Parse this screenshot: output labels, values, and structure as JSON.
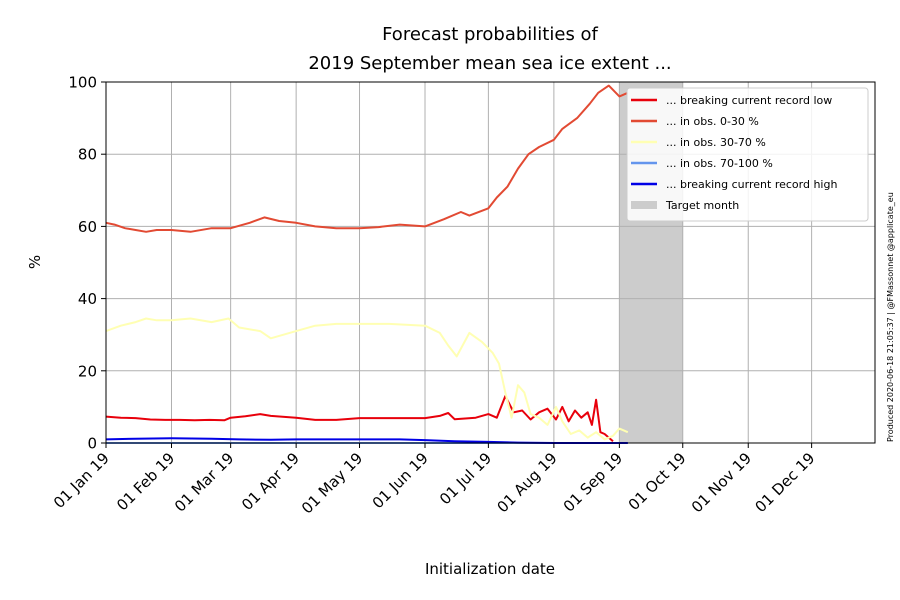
{
  "chart_data": {
    "type": "line",
    "title": [
      "Forecast probabilities of",
      "2019 September mean sea ice extent ..."
    ],
    "xlabel": "Initialization date",
    "ylabel": "%",
    "xlim": [
      "2019-01-01",
      "2019-12-31"
    ],
    "ylim": [
      0,
      100
    ],
    "yticks": [
      0,
      20,
      40,
      60,
      80,
      100
    ],
    "xticks": [
      {
        "date": "2019-01-01",
        "label": "01 Jan 19"
      },
      {
        "date": "2019-02-01",
        "label": "01 Feb 19"
      },
      {
        "date": "2019-03-01",
        "label": "01 Mar 19"
      },
      {
        "date": "2019-04-01",
        "label": "01 Apr 19"
      },
      {
        "date": "2019-05-01",
        "label": "01 May 19"
      },
      {
        "date": "2019-06-01",
        "label": "01 Jun 19"
      },
      {
        "date": "2019-07-01",
        "label": "01 Jul 19"
      },
      {
        "date": "2019-08-01",
        "label": "01 Aug 19"
      },
      {
        "date": "2019-09-01",
        "label": "01 Sep 19"
      },
      {
        "date": "2019-10-01",
        "label": "01 Oct 19"
      },
      {
        "date": "2019-11-01",
        "label": "01 Nov 19"
      },
      {
        "date": "2019-12-01",
        "label": "01 Dec 19"
      }
    ],
    "grid": true,
    "legend_position": "top-right",
    "target_month": {
      "start": "2019-09-01",
      "end": "2019-10-01",
      "label": "Target month",
      "color": "#cccccc"
    },
    "credit": "Produced 2020-06-18 21:05:37 | @FMassonnet @applicate_eu",
    "series": [
      {
        "name": "... breaking current record low",
        "color": "#e8000b",
        "points": [
          [
            "2019-01-01",
            7.3
          ],
          [
            "2019-01-08",
            7.0
          ],
          [
            "2019-01-15",
            6.9
          ],
          [
            "2019-01-22",
            6.5
          ],
          [
            "2019-01-29",
            6.4
          ],
          [
            "2019-02-05",
            6.4
          ],
          [
            "2019-02-12",
            6.3
          ],
          [
            "2019-02-19",
            6.4
          ],
          [
            "2019-02-26",
            6.3
          ],
          [
            "2019-03-01",
            7.0
          ],
          [
            "2019-03-08",
            7.4
          ],
          [
            "2019-03-15",
            8.0
          ],
          [
            "2019-03-20",
            7.5
          ],
          [
            "2019-04-01",
            7.0
          ],
          [
            "2019-04-10",
            6.4
          ],
          [
            "2019-04-20",
            6.4
          ],
          [
            "2019-05-01",
            6.9
          ],
          [
            "2019-05-15",
            6.9
          ],
          [
            "2019-06-01",
            6.9
          ],
          [
            "2019-06-08",
            7.5
          ],
          [
            "2019-06-12",
            8.3
          ],
          [
            "2019-06-15",
            6.6
          ],
          [
            "2019-06-25",
            7.0
          ],
          [
            "2019-07-01",
            8.0
          ],
          [
            "2019-07-05",
            7.0
          ],
          [
            "2019-07-09",
            13.0
          ],
          [
            "2019-07-13",
            8.5
          ],
          [
            "2019-07-17",
            9.0
          ],
          [
            "2019-07-21",
            6.5
          ],
          [
            "2019-07-25",
            8.5
          ],
          [
            "2019-07-29",
            9.5
          ],
          [
            "2019-08-02",
            6.5
          ],
          [
            "2019-08-05",
            10.0
          ],
          [
            "2019-08-08",
            6.0
          ],
          [
            "2019-08-11",
            9.0
          ],
          [
            "2019-08-14",
            7.0
          ],
          [
            "2019-08-17",
            8.5
          ],
          [
            "2019-08-19",
            5.0
          ],
          [
            "2019-08-21",
            12.0
          ],
          [
            "2019-08-23",
            3.0
          ],
          [
            "2019-08-25",
            2.5
          ],
          [
            "2019-08-27",
            1.5
          ],
          [
            "2019-08-29",
            0.5
          ]
        ]
      },
      {
        "name": "... in obs. 0-30 %",
        "color": "#e24a33",
        "points": [
          [
            "2019-01-01",
            61.0
          ],
          [
            "2019-01-05",
            60.5
          ],
          [
            "2019-01-10",
            59.5
          ],
          [
            "2019-01-15",
            59.0
          ],
          [
            "2019-01-20",
            58.5
          ],
          [
            "2019-01-25",
            59.0
          ],
          [
            "2019-02-01",
            59.0
          ],
          [
            "2019-02-10",
            58.5
          ],
          [
            "2019-02-20",
            59.5
          ],
          [
            "2019-03-01",
            59.5
          ],
          [
            "2019-03-10",
            61.0
          ],
          [
            "2019-03-17",
            62.5
          ],
          [
            "2019-03-24",
            61.5
          ],
          [
            "2019-04-01",
            61.0
          ],
          [
            "2019-04-10",
            60.0
          ],
          [
            "2019-04-20",
            59.5
          ],
          [
            "2019-05-01",
            59.5
          ],
          [
            "2019-05-10",
            59.8
          ],
          [
            "2019-05-20",
            60.5
          ],
          [
            "2019-06-01",
            60.0
          ],
          [
            "2019-06-10",
            62.0
          ],
          [
            "2019-06-18",
            64.0
          ],
          [
            "2019-06-22",
            63.0
          ],
          [
            "2019-07-01",
            65.0
          ],
          [
            "2019-07-05",
            68.0
          ],
          [
            "2019-07-10",
            71.0
          ],
          [
            "2019-07-15",
            76.0
          ],
          [
            "2019-07-20",
            80.0
          ],
          [
            "2019-07-25",
            82.0
          ],
          [
            "2019-08-01",
            84.0
          ],
          [
            "2019-08-05",
            87.0
          ],
          [
            "2019-08-12",
            90.0
          ],
          [
            "2019-08-18",
            94.0
          ],
          [
            "2019-08-22",
            97.0
          ],
          [
            "2019-08-27",
            99.0
          ],
          [
            "2019-09-01",
            96.0
          ],
          [
            "2019-09-05",
            97.0
          ]
        ]
      },
      {
        "name": "... in obs. 30-70 %",
        "color": "#ffffb3",
        "points": [
          [
            "2019-01-01",
            31.0
          ],
          [
            "2019-01-08",
            32.5
          ],
          [
            "2019-01-15",
            33.5
          ],
          [
            "2019-01-20",
            34.5
          ],
          [
            "2019-01-25",
            34.0
          ],
          [
            "2019-02-01",
            34.0
          ],
          [
            "2019-02-10",
            34.5
          ],
          [
            "2019-02-20",
            33.5
          ],
          [
            "2019-02-28",
            34.5
          ],
          [
            "2019-03-05",
            32.0
          ],
          [
            "2019-03-15",
            31.0
          ],
          [
            "2019-03-20",
            29.0
          ],
          [
            "2019-04-01",
            31.0
          ],
          [
            "2019-04-10",
            32.5
          ],
          [
            "2019-04-20",
            33.0
          ],
          [
            "2019-05-01",
            33.0
          ],
          [
            "2019-05-15",
            33.0
          ],
          [
            "2019-06-01",
            32.5
          ],
          [
            "2019-06-08",
            30.5
          ],
          [
            "2019-06-12",
            27.0
          ],
          [
            "2019-06-16",
            24.0
          ],
          [
            "2019-06-22",
            30.5
          ],
          [
            "2019-06-28",
            28.0
          ],
          [
            "2019-07-03",
            25.0
          ],
          [
            "2019-07-06",
            22.0
          ],
          [
            "2019-07-09",
            14.0
          ],
          [
            "2019-07-12",
            7.0
          ],
          [
            "2019-07-15",
            16.0
          ],
          [
            "2019-07-18",
            14.0
          ],
          [
            "2019-07-21",
            8.0
          ],
          [
            "2019-07-25",
            7.0
          ],
          [
            "2019-07-29",
            5.0
          ],
          [
            "2019-08-02",
            10.0
          ],
          [
            "2019-08-05",
            6.0
          ],
          [
            "2019-08-09",
            2.5
          ],
          [
            "2019-08-13",
            3.5
          ],
          [
            "2019-08-17",
            1.5
          ],
          [
            "2019-08-21",
            3.0
          ],
          [
            "2019-08-25",
            1.0
          ],
          [
            "2019-08-29",
            2.0
          ],
          [
            "2019-09-01",
            4.0
          ],
          [
            "2019-09-05",
            3.0
          ]
        ]
      },
      {
        "name": "... in obs. 70-100 %",
        "color": "#6495ed",
        "points": [
          [
            "2019-01-01",
            0.0
          ],
          [
            "2019-09-05",
            0.0
          ]
        ]
      },
      {
        "name": "... breaking current record high",
        "color": "#0000e6",
        "points": [
          [
            "2019-01-01",
            1.0
          ],
          [
            "2019-01-15",
            1.2
          ],
          [
            "2019-02-01",
            1.3
          ],
          [
            "2019-02-20",
            1.2
          ],
          [
            "2019-03-05",
            1.0
          ],
          [
            "2019-03-20",
            0.9
          ],
          [
            "2019-04-01",
            1.0
          ],
          [
            "2019-04-20",
            1.0
          ],
          [
            "2019-05-01",
            1.0
          ],
          [
            "2019-05-20",
            1.0
          ],
          [
            "2019-06-01",
            0.8
          ],
          [
            "2019-06-15",
            0.5
          ],
          [
            "2019-07-01",
            0.3
          ],
          [
            "2019-07-15",
            0.1
          ],
          [
            "2019-08-01",
            0.0
          ],
          [
            "2019-09-05",
            0.0
          ]
        ]
      }
    ]
  }
}
